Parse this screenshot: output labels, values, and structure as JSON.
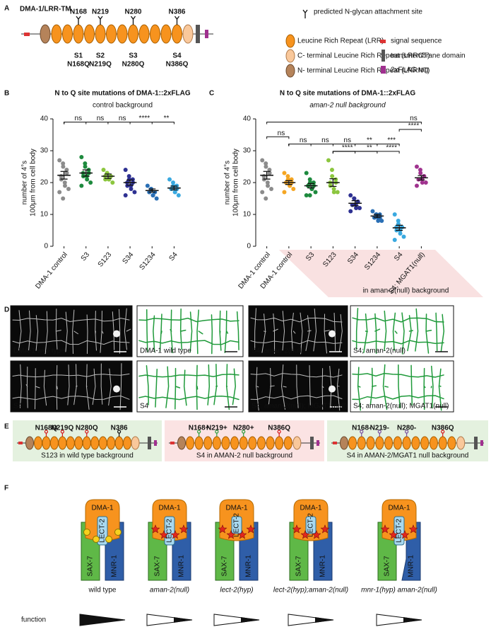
{
  "panel_a": {
    "label": "A",
    "title": "DMA-1/LRR-TM",
    "sites": [
      "N168",
      "N219",
      "N280",
      "N386"
    ],
    "mutant_names": [
      "S1",
      "S2",
      "S3",
      "S4"
    ],
    "mutations": [
      "N168Q",
      "N219Q",
      "N280Q",
      "N386Q"
    ],
    "legend": {
      "glycan": "predicted N-glycan attachment site",
      "lrr": "Leucine Rich Repeat (LRR)",
      "lrrct": "C- terminal Leucine Rich Repeat (LRRCT)",
      "lrrnt": "N- terminal Leucine Rich Repeat (LRRNT)",
      "signal": "signal sequence",
      "tm": "transmembrane domain",
      "flag": "2xFLAG tag"
    }
  },
  "chart_data": [
    {
      "type": "dotplot",
      "label": "B",
      "title": "N to Q site mutations of DMA-1::2xFLAG",
      "subtitle": "control background",
      "y_label": [
        "number of 4°s",
        "100μm from cell body"
      ],
      "categories": [
        "DMA-1 control",
        "S3",
        "S123",
        "S34",
        "S1234",
        "S4"
      ],
      "colors": [
        "#8c8c8c",
        "#1e8a3e",
        "#8cc63f",
        "#2e3192",
        "#2a6fb5",
        "#3aa9e0"
      ],
      "points": [
        [
          27,
          26,
          25,
          24,
          23,
          22,
          21,
          20,
          19,
          18,
          17,
          15
        ],
        [
          28,
          26,
          25,
          24,
          23,
          23,
          22,
          22,
          21,
          20,
          19
        ],
        [
          24,
          23,
          23,
          22,
          22,
          22,
          21,
          21,
          21,
          20
        ],
        [
          24,
          22,
          21,
          21,
          20,
          20,
          19,
          19,
          18,
          17,
          16
        ],
        [
          19,
          18,
          18,
          17,
          17,
          17,
          17,
          16,
          16,
          15
        ],
        [
          21,
          20,
          19,
          19,
          18,
          18,
          18,
          17,
          17,
          16
        ]
      ],
      "means": [
        22.3,
        23,
        22,
        20,
        17.5,
        18.3
      ],
      "errors": [
        1.2,
        1,
        0.7,
        0.8,
        0.5,
        0.6
      ],
      "ylim": [
        0,
        40
      ],
      "yticks": [
        0,
        10,
        20,
        30,
        40
      ],
      "brackets": [
        {
          "from": 0,
          "to": 1,
          "label": "ns"
        },
        {
          "from": 0,
          "to": 2,
          "label": "ns"
        },
        {
          "from": 0,
          "to": 3,
          "label": "ns"
        },
        {
          "from": 0,
          "to": 4,
          "label": "****"
        },
        {
          "from": 0,
          "to": 5,
          "label": "**"
        }
      ]
    },
    {
      "type": "dotplot",
      "label": "C",
      "title": "N to Q site mutations of DMA-1::2xFLAG",
      "subtitle": "aman-2 null background",
      "y_label": [
        "number of 4°s",
        "100μm from cell body"
      ],
      "categories": [
        "DMA-1 control",
        "DMA-1 control",
        "S3",
        "S123",
        "S34",
        "S1234",
        "S4",
        "S4; MGAT1(null)"
      ],
      "colors": [
        "#8c8c8c",
        "#f5a623",
        "#1e8a3e",
        "#8cc63f",
        "#2e3192",
        "#2a6fb5",
        "#3aa9e0",
        "#a0338f"
      ],
      "points": [
        [
          27,
          26,
          25,
          24,
          23,
          22,
          21,
          20,
          19,
          18,
          17,
          15
        ],
        [
          23,
          22,
          21,
          21,
          20,
          20,
          20,
          19,
          19,
          18,
          17
        ],
        [
          23,
          21,
          20,
          20,
          19,
          19,
          19,
          18,
          18,
          17,
          16,
          16
        ],
        [
          27,
          24,
          22,
          21,
          20,
          20,
          19,
          18,
          17,
          17
        ],
        [
          16,
          15,
          15,
          14,
          14,
          13,
          13,
          13,
          12,
          12,
          11
        ],
        [
          11,
          10,
          10,
          10,
          9,
          9,
          9,
          9,
          8,
          8
        ],
        [
          10,
          8,
          7,
          6,
          6,
          6,
          5,
          5,
          4,
          3,
          2
        ],
        [
          25,
          24,
          23,
          22,
          22,
          21,
          21,
          21,
          20,
          20,
          19
        ]
      ],
      "means": [
        22.3,
        20,
        19,
        20,
        13.5,
        9.5,
        5.8,
        21.5
      ],
      "errors": [
        1.2,
        0.6,
        0.7,
        1.2,
        0.8,
        0.5,
        0.8,
        0.7
      ],
      "ylim": [
        0,
        40
      ],
      "yticks": [
        0,
        10,
        20,
        30,
        40
      ],
      "brackets": [
        {
          "from": 0,
          "to": 7,
          "label": "ns"
        },
        {
          "from": 6,
          "to": 7,
          "label": "****"
        },
        {
          "from": 0,
          "to": 1,
          "label": "ns"
        },
        {
          "from": 1,
          "to": 2,
          "label": "ns"
        },
        {
          "from": 1,
          "to": 3,
          "label": "ns"
        },
        {
          "from": 1,
          "to": 4,
          "label": "ns"
        },
        {
          "from": 1,
          "to": 5,
          "label": "**"
        },
        {
          "from": 1,
          "to": 6,
          "label": "***"
        },
        {
          "from": 3,
          "to": 4,
          "label": "****"
        },
        {
          "from": 3,
          "to": 5,
          "label": "**"
        },
        {
          "from": 3,
          "to": 6,
          "label": "****"
        }
      ],
      "background_note": "in aman-2(null) background"
    }
  ],
  "panel_d": {
    "label": "D",
    "images": [
      "DMA-1 wild type",
      "DMA-1 wild type",
      "S4; aman-2(null)",
      "S4; aman-2(null)",
      "S4",
      "S4",
      "S4; aman-2(null); MGAT1(null)",
      "S4; aman-2(null); MGAT1(null)"
    ]
  },
  "panel_e": {
    "label": "E",
    "constructs": [
      {
        "sites": [
          "N168Q",
          "N219Q",
          "N280Q",
          "N386"
        ],
        "site_colors": [
          "#d7191c",
          "#d7191c",
          "#d7191c",
          "#111111"
        ],
        "caption": "S123 in wild type background"
      },
      {
        "sites": [
          "N168+",
          "N219+",
          "N280+",
          "N386Q"
        ],
        "site_colors": [
          "#2e9e3e",
          "#2e9e3e",
          "#2e9e3e",
          "#d7191c"
        ],
        "caption": "S4 in AMAN-2 null background"
      },
      {
        "sites": [
          "N168-",
          "N219-",
          "N280-",
          "N386Q"
        ],
        "site_colors": [
          "#7a4fa0",
          "#7a4fa0",
          "#7a4fa0",
          "#d7191c"
        ],
        "caption": "S4 in AMAN-2/MGAT1 null background"
      }
    ]
  },
  "panel_f": {
    "label": "F",
    "proteins": {
      "dma1": "DMA-1",
      "lect2": "LECT-2",
      "sax7": "SAX-7",
      "mnr1": "MNR-1"
    },
    "models": [
      "wild type",
      "aman-2(null)",
      "lect-2(hyp)",
      "lect-2(hyp);aman-2(null)",
      "mnr-1(hyp) aman-2(null)"
    ],
    "function_label": "function"
  }
}
